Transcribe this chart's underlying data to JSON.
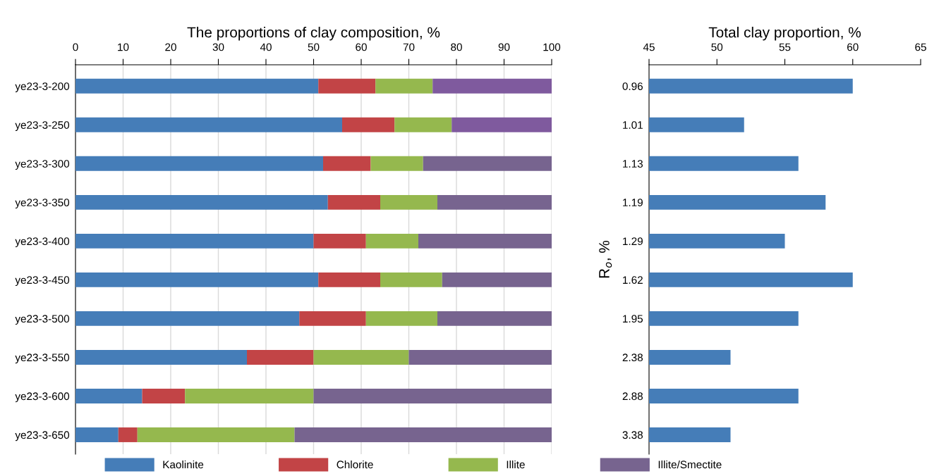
{
  "chart_data": [
    {
      "type": "bar",
      "orientation": "horizontal",
      "stacked": true,
      "title": "The proportions of clay composition, %",
      "categories": [
        "ye23-3-200",
        "ye23-3-250",
        "ye23-3-300",
        "ye23-3-350",
        "ye23-3-400",
        "ye23-3-450",
        "ye23-3-500",
        "ye23-3-550",
        "ye23-3-600",
        "ye23-3-650"
      ],
      "series": [
        {
          "name": "Kaolinite",
          "color": "#457db8",
          "values": [
            51,
            56,
            52,
            53,
            50,
            51,
            47,
            36,
            14,
            9
          ]
        },
        {
          "name": "Chlorite",
          "color": "#c24446",
          "values": [
            12,
            11,
            10,
            11,
            11,
            13,
            14,
            14,
            9,
            4
          ]
        },
        {
          "name": "Illite",
          "color": "#95b84e",
          "values": [
            12,
            12,
            11,
            12,
            11,
            13,
            15,
            20,
            27,
            33
          ]
        },
        {
          "name": "Illite/Smectite",
          "color": "#77648f",
          "colors": [
            "#7f5a9e",
            "#7f5a9e",
            "#77648f",
            "#77648f",
            "#77648f",
            "#77648f",
            "#77648f",
            "#77648f",
            "#77648f",
            "#77648f"
          ],
          "values": [
            25,
            21,
            27,
            24,
            28,
            23,
            24,
            30,
            50,
            54
          ]
        }
      ],
      "xlim": [
        0,
        100
      ],
      "xticks": [
        0,
        10,
        20,
        30,
        40,
        50,
        60,
        70,
        80,
        90,
        100
      ],
      "grid": "x",
      "legend": "bottom"
    },
    {
      "type": "bar",
      "orientation": "horizontal",
      "title": "Total clay proportion, %",
      "ylabel": "R$_{o}$, %",
      "categories": [
        "0.96",
        "1.01",
        "1.13",
        "1.19",
        "1.29",
        "1.62",
        "1.95",
        "2.38",
        "2.88",
        "3.38"
      ],
      "series": [
        {
          "color": "#457db8",
          "values": [
            60,
            52,
            56,
            58,
            55,
            60,
            56,
            51,
            56,
            51
          ]
        }
      ],
      "xlim": [
        45,
        65
      ],
      "xticks": [
        45,
        50,
        55,
        60,
        65
      ],
      "grid": false
    }
  ]
}
